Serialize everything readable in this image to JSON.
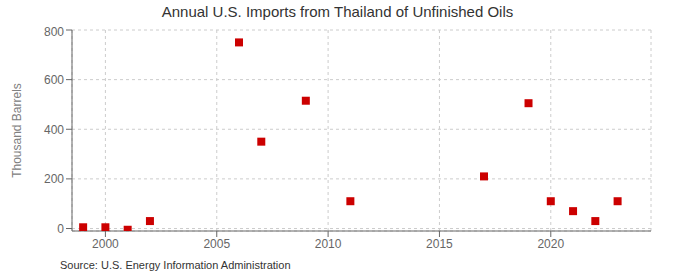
{
  "chart_data": {
    "type": "scatter",
    "title": "Annual U.S. Imports from Thailand of Unfinished Oils",
    "ylabel": "Thousand Barrels",
    "source": "Source: U.S. Energy Information Administration",
    "x": [
      1999,
      2000,
      2001,
      2002,
      2006,
      2007,
      2009,
      2011,
      2017,
      2019,
      2020,
      2021,
      2022,
      2023
    ],
    "values": [
      5,
      5,
      -5,
      30,
      750,
      350,
      515,
      110,
      210,
      505,
      110,
      70,
      30,
      110
    ],
    "color": "#cc0000",
    "marker": "square",
    "xlim": [
      1998.5,
      2024.5
    ],
    "ylim": [
      -10,
      800
    ],
    "xticks": [
      2000,
      2005,
      2010,
      2015,
      2020
    ],
    "yticks": [
      0,
      200,
      400,
      600,
      800
    ],
    "grid": true
  }
}
